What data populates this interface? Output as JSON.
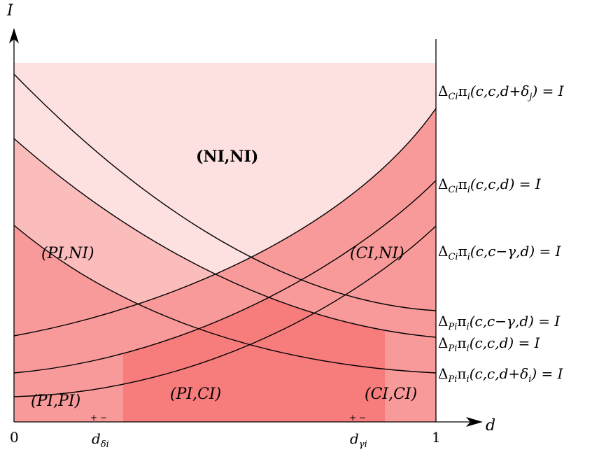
{
  "axes": {
    "x_symbol": "d",
    "y_symbol": "I",
    "x_tick_0": "0",
    "x_tick_1": "1"
  },
  "x_markers": [
    {
      "sub": "δi",
      "signs": "+ −"
    },
    {
      "sub": "γi",
      "signs": "+ −"
    }
  ],
  "regions": [
    {
      "name": "NI,NI",
      "text": "(NI,NI)"
    },
    {
      "name": "PI,NI",
      "text": "(PI,NI)"
    },
    {
      "name": "CI,NI",
      "text": "(CI,NI)"
    },
    {
      "name": "PI,PI",
      "text": "(PI,PI)"
    },
    {
      "name": "PI,CI",
      "text": "(PI,CI)"
    },
    {
      "name": "CI,CI",
      "text": "(CI,CI)"
    }
  ],
  "curve_labels": [
    {
      "prefix": "Δ",
      "sub": "Ci",
      "body": "π",
      "bsub": "i",
      "args": "(c,c,d+δ",
      "jsub": "j",
      "tail": ") = I"
    },
    {
      "prefix": "Δ",
      "sub": "Ci",
      "body": "π",
      "bsub": "i",
      "args": "(c,c,d) = I",
      "jsub": "",
      "tail": ""
    },
    {
      "prefix": "Δ",
      "sub": "Ci",
      "body": "π",
      "bsub": "i",
      "args": "(c,c−γ,d) = I",
      "jsub": "",
      "tail": ""
    },
    {
      "prefix": "Δ",
      "sub": "Pi",
      "body": "π",
      "bsub": "i",
      "args": "(c,c−γ,d) = I",
      "jsub": "",
      "tail": ""
    },
    {
      "prefix": "Δ",
      "sub": "Pi",
      "body": "π",
      "bsub": "i",
      "args": "(c,c,d) = I",
      "jsub": "",
      "tail": ""
    },
    {
      "prefix": "Δ",
      "sub": "Pi",
      "body": "π",
      "bsub": "i",
      "args": "(c,c,d+δ",
      "jsub": "i",
      "tail": ") = I"
    }
  ],
  "colors": {
    "light": "#fde0e0",
    "medium": "#fbbcbc",
    "strong": "#f99a9a",
    "deep": "#f77c7c",
    "hatch_fill": "#ffffff"
  }
}
